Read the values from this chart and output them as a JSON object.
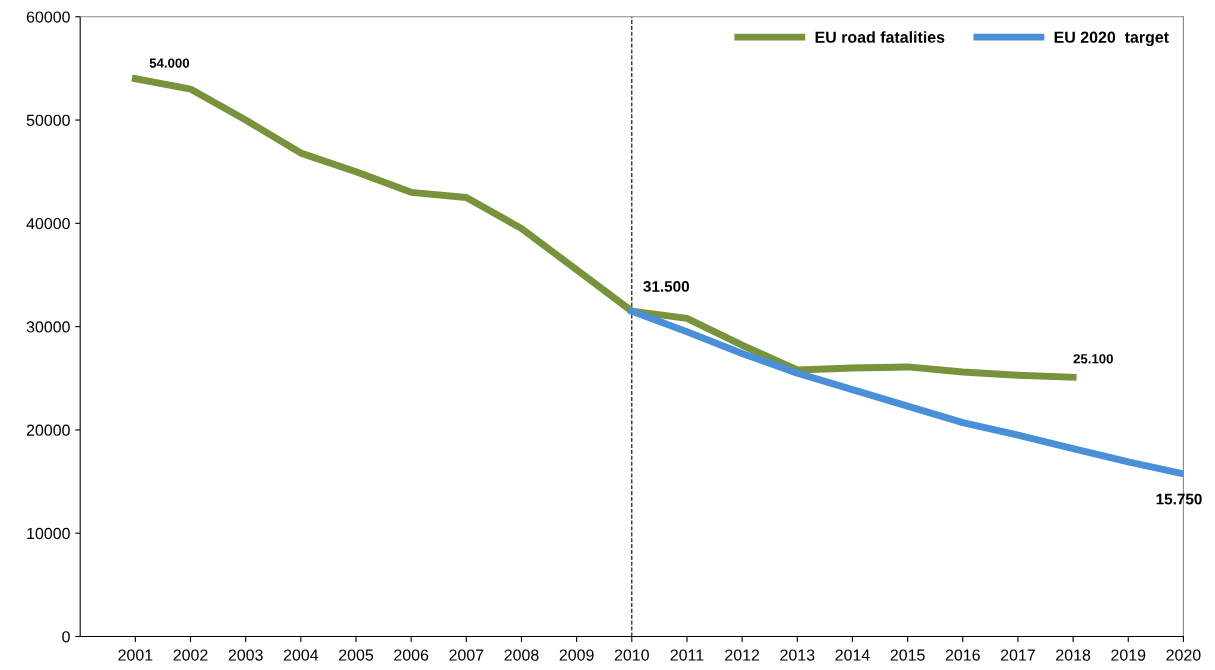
{
  "chart_data": {
    "type": "line",
    "x": [
      2001,
      2002,
      2003,
      2004,
      2005,
      2006,
      2007,
      2008,
      2009,
      2010,
      2011,
      2012,
      2013,
      2014,
      2015,
      2016,
      2017,
      2018,
      2019,
      2020
    ],
    "series": [
      {
        "name": "EU road fatalities",
        "color": "#77933c",
        "values": [
          54000,
          53000,
          50000,
          46800,
          45000,
          43000,
          42500,
          39500,
          35500,
          31500,
          30800,
          28200,
          25800,
          26000,
          26100,
          25600,
          25300,
          25100,
          null,
          null
        ]
      },
      {
        "name": "EU 2020  target",
        "color": "#4a90d9",
        "values": [
          null,
          null,
          null,
          null,
          null,
          null,
          null,
          null,
          null,
          31500,
          29500,
          27400,
          25500,
          23900,
          22300,
          20700,
          19500,
          18200,
          16900,
          15750
        ]
      }
    ],
    "xlim": [
      2000,
      2020
    ],
    "xticks": [
      2001,
      2002,
      2003,
      2004,
      2005,
      2006,
      2007,
      2008,
      2009,
      2010,
      2011,
      2012,
      2013,
      2014,
      2015,
      2016,
      2017,
      2018,
      2019,
      2020
    ],
    "ylim": [
      0,
      60000
    ],
    "yticks": [
      0,
      10000,
      20000,
      30000,
      40000,
      50000,
      60000
    ],
    "ref_lines": [
      {
        "axis": "x",
        "value": 2010,
        "color": "#000000",
        "line_style": "dashed"
      }
    ],
    "annotations": [
      {
        "text": "54.000",
        "x": 2001,
        "y": 54000
      },
      {
        "text": "31.500",
        "x": 2010,
        "y": 31500
      },
      {
        "text": "25.100",
        "x": 2018,
        "y": 25100
      },
      {
        "text": "15.750",
        "x": 2020,
        "y": 15750
      }
    ],
    "legend": "top right",
    "grid": false,
    "marker": "none",
    "line_style": "solid"
  }
}
